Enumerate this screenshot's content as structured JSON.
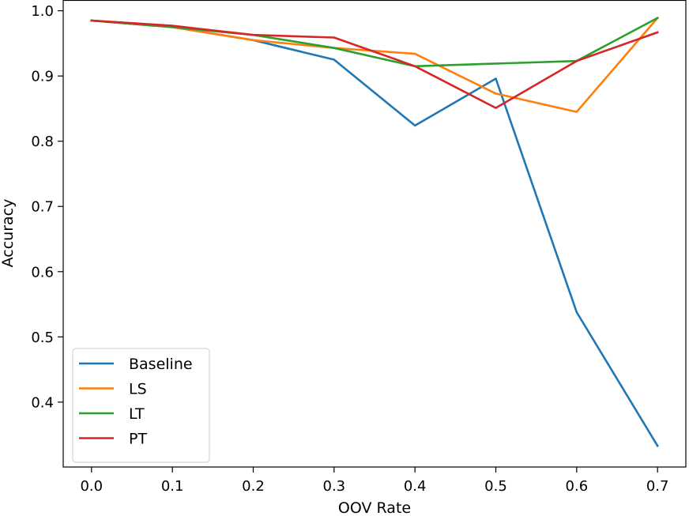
{
  "chart_data": {
    "type": "line",
    "title": "",
    "xlabel": "OOV Rate",
    "ylabel": "Accuracy",
    "x": [
      0.0,
      0.1,
      0.2,
      0.3,
      0.4,
      0.5,
      0.6,
      0.7
    ],
    "xticks": [
      "0.0",
      "0.1",
      "0.2",
      "0.3",
      "0.4",
      "0.5",
      "0.6",
      "0.7"
    ],
    "yticks": [
      "0.4",
      "0.5",
      "0.6",
      "0.7",
      "0.8",
      "0.9",
      "1.0"
    ],
    "ytick_values": [
      0.4,
      0.5,
      0.6,
      0.7,
      0.8,
      0.9,
      1.0
    ],
    "xlim": [
      -0.035,
      0.735
    ],
    "ylim": [
      0.3005,
      1.0165
    ],
    "grid": false,
    "legend_position": "lower-left",
    "series": [
      {
        "name": "Baseline",
        "color": "#1f77b4",
        "values": [
          0.985,
          0.975,
          0.955,
          0.925,
          0.824,
          0.896,
          0.538,
          0.333
        ]
      },
      {
        "name": "LS",
        "color": "#ff7f0e",
        "values": [
          0.985,
          0.975,
          0.955,
          0.943,
          0.934,
          0.873,
          0.845,
          0.989
        ]
      },
      {
        "name": "LT",
        "color": "#2ca02c",
        "values": [
          0.985,
          0.975,
          0.963,
          0.943,
          0.915,
          null,
          0.923,
          0.989
        ]
      },
      {
        "name": "PT",
        "color": "#d62728",
        "values": [
          0.985,
          0.977,
          0.963,
          0.959,
          0.915,
          0.851,
          0.923,
          0.967
        ]
      }
    ]
  }
}
